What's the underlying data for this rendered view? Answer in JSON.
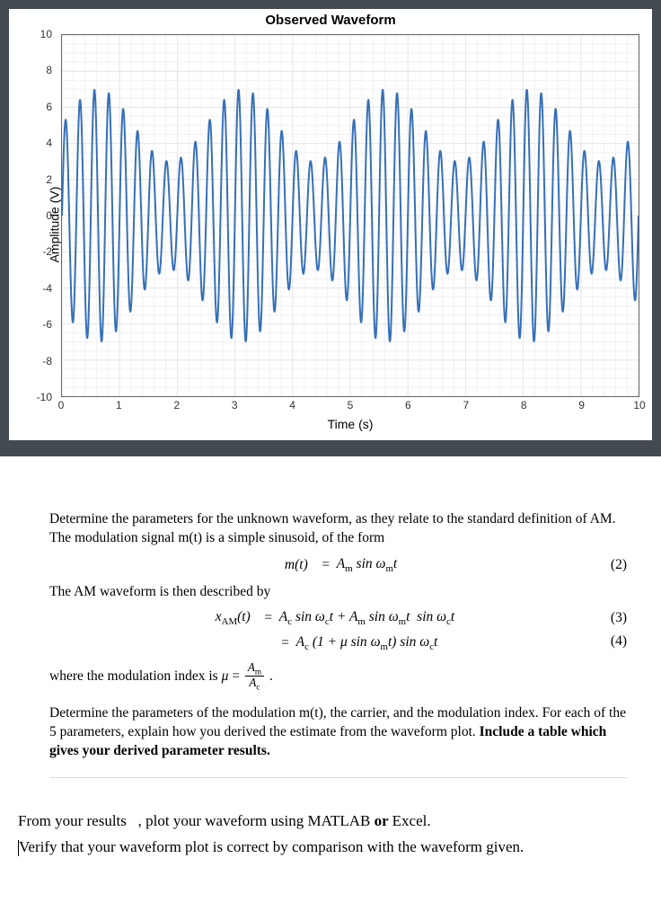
{
  "chart": {
    "title": "Observed Waveform",
    "xlabel": "Time (s)",
    "ylabel": "Amplitude (V)",
    "xlim": [
      0,
      10
    ],
    "ylim": [
      -10,
      10
    ],
    "xticks": [
      0,
      1,
      2,
      3,
      4,
      5,
      6,
      7,
      8,
      9,
      10
    ],
    "yticks": [
      -10,
      -8,
      -6,
      -4,
      -2,
      0,
      2,
      4,
      6,
      8,
      10
    ],
    "xminor_step": 0.2,
    "yminor_step": 0.5,
    "grid_color": "#e6e6e6",
    "minor_grid_color": "#f2f2f2",
    "axis_color": "#666666",
    "background": "#ffffff",
    "line_color": "#3670b8",
    "line_width": 2,
    "signal": {
      "Ac": 5,
      "Am": 2,
      "fm_hz": 0.4,
      "fc_hz": 4,
      "phase_c": 0,
      "phase_m": 0,
      "sample_dt": 0.005
    }
  },
  "text": {
    "p1": "Determine the parameters for the unknown waveform, as they relate to the standard definition of AM. The modulation signal m(t) is a simple sinusoid, of the form",
    "p2": "The AM waveform is then described by",
    "p3_prefix": "where the modulation index is ",
    "p4": "Determine the parameters of the modulation m(t), the carrier, and the modulation index. For each of the 5 parameters, explain how you derived the estimate from the waveform plot.",
    "p4b": "Include a table which gives your derived parameter results.",
    "f1a": "From your results",
    "f1b": ", plot your waveform using MATLAB",
    "f1c": " or ",
    "f1d": "Excel.",
    "f2": "Verify that your waveform plot is correct by comparison with the waveform given."
  },
  "equations": {
    "eq2_num": "(2)",
    "eq3_num": "(3)",
    "eq4_num": "(4)"
  }
}
